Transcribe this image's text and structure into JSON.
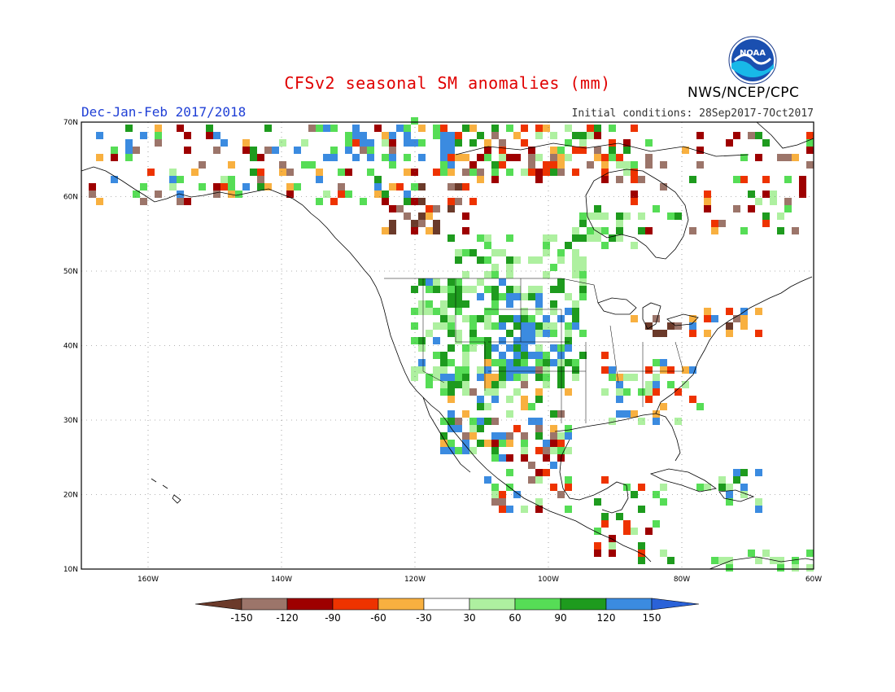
{
  "title": "CFSv2 seasonal SM anomalies (mm)",
  "subtitle": "Dec-Jan-Feb 2017/2018",
  "initial_conditions": "Initial conditions: 28Sep2017-7Oct2017",
  "agency": "NWS/NCEP/CPC",
  "logo_text": "NOAA",
  "map": {
    "region": "North America",
    "lon_range": [
      -170,
      -60
    ],
    "lat_range": [
      10,
      70
    ],
    "lat_ticks": [
      "70N",
      "60N",
      "50N",
      "40N",
      "30N",
      "20N",
      "10N"
    ],
    "lon_ticks": [
      "160W",
      "140W",
      "120W",
      "100W",
      "80W",
      "60W"
    ],
    "gridlines": "dotted",
    "ocean_color": "#ffffff",
    "coastline_color": "#000000"
  },
  "colorbar": {
    "labels": [
      "-150",
      "-120",
      "-90",
      "-60",
      "-30",
      "30",
      "60",
      "90",
      "120",
      "150"
    ],
    "colors": [
      "#6b3a2a",
      "#9c756a",
      "#9e0000",
      "#ee3300",
      "#f8b040",
      "#ffffff",
      "#aef0a0",
      "#56dd56",
      "#1e9b1e",
      "#3b8be0",
      "#2a62d8"
    ]
  }
}
